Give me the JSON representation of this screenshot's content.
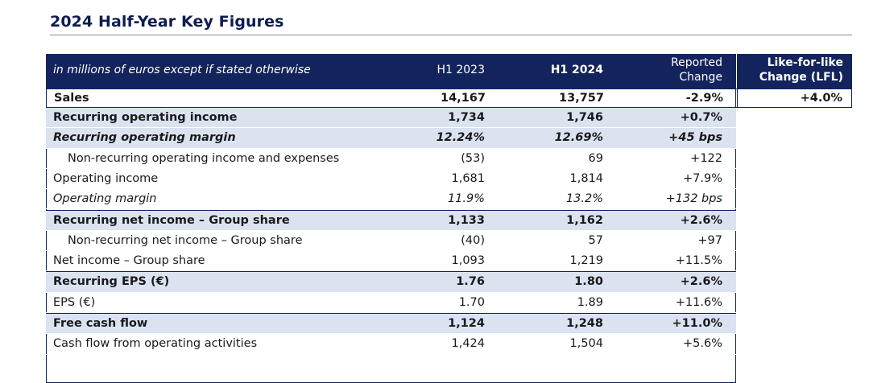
{
  "page": {
    "title": "2024 Half-Year Key Figures"
  },
  "table": {
    "header": {
      "label": "in millions of euros except if stated otherwise",
      "h1_2023": "H1 2023",
      "h1_2024": "H1 2024",
      "reported_change_line1": "Reported",
      "reported_change_line2": "Change",
      "lfl_line1": "Like-for-like",
      "lfl_line2": "Change (LFL)"
    },
    "sales": {
      "label": "Sales",
      "h1_2023": "14,167",
      "h1_2024": "13,757",
      "reported_change": "-2.9%",
      "lfl_change": "+4.0%"
    },
    "rows": [
      {
        "label": "Recurring operating income",
        "h1_2023": "1,734",
        "h1_2024": "1,746",
        "reported_change": "+0.7%"
      },
      {
        "label": "Recurring operating margin",
        "h1_2023": "12.24%",
        "h1_2024": "12.69%",
        "reported_change": "+45 bps"
      },
      {
        "label": "Non-recurring operating income and expenses",
        "h1_2023": "(53)",
        "h1_2024": "69",
        "reported_change": "+122"
      },
      {
        "label": "Operating income",
        "h1_2023": "1,681",
        "h1_2024": "1,814",
        "reported_change": "+7.9%"
      },
      {
        "label": "Operating margin",
        "h1_2023": "11.9%",
        "h1_2024": "13.2%",
        "reported_change": "+132 bps"
      },
      {
        "label": "Recurring net income – Group share",
        "h1_2023": "1,133",
        "h1_2024": "1,162",
        "reported_change": "+2.6%"
      },
      {
        "label": "Non-recurring net income – Group share",
        "h1_2023": "(40)",
        "h1_2024": "57",
        "reported_change": "+97"
      },
      {
        "label": "Net income – Group share",
        "h1_2023": "1,093",
        "h1_2024": "1,219",
        "reported_change": "+11.5%"
      },
      {
        "label": "Recurring EPS (€)",
        "h1_2023": "1.76",
        "h1_2024": "1.80",
        "reported_change": "+2.6%"
      },
      {
        "label": "EPS (€)",
        "h1_2023": "1.70",
        "h1_2024": "1.89",
        "reported_change": "+11.6%"
      },
      {
        "label": "Free cash flow",
        "h1_2023": "1,124",
        "h1_2024": "1,248",
        "reported_change": "+11.0%"
      },
      {
        "label": "Cash flow from operating activities",
        "h1_2023": "1,424",
        "h1_2024": "1,504",
        "reported_change": "+5.6%"
      }
    ]
  },
  "colors": {
    "header_bg": "#13235c",
    "shade_bg": "#dbe3f1",
    "title_color": "#0d1b52"
  }
}
